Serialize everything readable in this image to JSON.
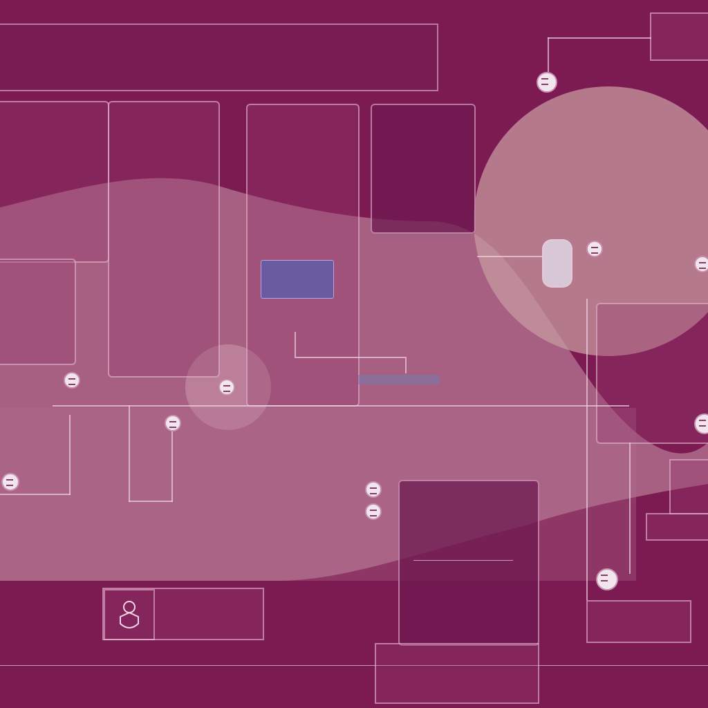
{
  "colors": {
    "background": "#7c1a52",
    "panel": "#9a3c6e",
    "accent_purple": "#6a5aa0",
    "node": "#f2e6ee",
    "blob": "#c89aa8"
  },
  "header": {
    "line1_left": "",
    "line1_right": "",
    "line2_left": "",
    "line2_mid": "",
    "line2_right": ""
  },
  "top_right": {
    "caption": "",
    "box_line1": "",
    "box_line2": ""
  },
  "card1": {
    "title": "",
    "rows": [
      "",
      "",
      "",
      "",
      "",
      ""
    ]
  },
  "card2": {
    "title": "",
    "rows": [
      "",
      "",
      "",
      "",
      "",
      "",
      ""
    ]
  },
  "card3": {
    "title": "",
    "rows": [
      "",
      "",
      "",
      "",
      "",
      ""
    ],
    "chip": ""
  },
  "card4": {
    "title": "",
    "rows": [
      "",
      "",
      ""
    ]
  },
  "circle_panel": {
    "title": "",
    "rows": [
      "",
      "",
      "",
      ""
    ]
  },
  "right_panel": {
    "rows": [
      "",
      "",
      ""
    ]
  },
  "left_panel": {
    "title": "",
    "rows": [
      "",
      ""
    ]
  },
  "mid_strip": {
    "label": "",
    "sublabel": ""
  },
  "lower_left": {
    "rows": [
      "",
      "",
      ""
    ]
  },
  "lower_mid": {
    "rows": [
      "",
      "",
      "",
      ""
    ]
  },
  "feature_card": {
    "label": "",
    "title": "",
    "rows": [
      "",
      "",
      ""
    ]
  },
  "right_lower": {
    "rows": [
      "",
      "",
      ""
    ],
    "box_line1": "",
    "box_line2": ""
  },
  "bottom_card": {
    "rows": [
      "",
      "",
      ""
    ]
  },
  "footer": {
    "items": [
      "",
      "",
      "",
      "",
      ""
    ]
  }
}
